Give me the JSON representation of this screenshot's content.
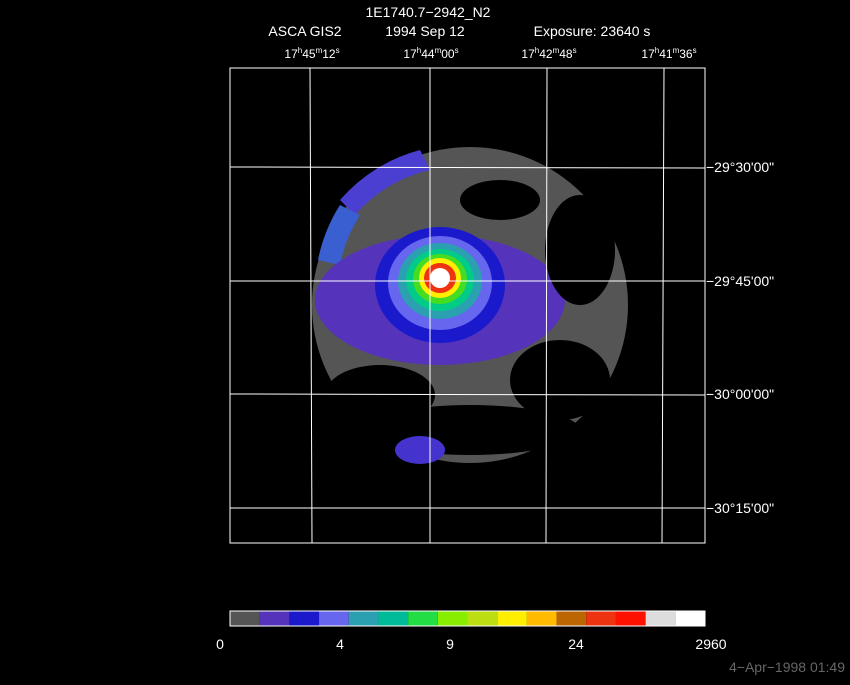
{
  "header": {
    "title": "1E1740.7−2942_N2",
    "instrument": "ASCA GIS2",
    "date": "1994 Sep 12",
    "exposure": "Exposure: 23640 s"
  },
  "ra_labels": [
    [
      "17",
      "h",
      "45",
      "m",
      "12",
      "s"
    ],
    [
      "17",
      "h",
      "44",
      "m",
      "00",
      "s"
    ],
    [
      "17",
      "h",
      "42",
      "m",
      "48",
      "s"
    ],
    [
      "17",
      "h",
      "41",
      "m",
      "36",
      "s"
    ]
  ],
  "dec_labels": [
    "−29°30'00\"",
    "−29°45'00\"",
    "−30°00'00\"",
    "−30°15'00\""
  ],
  "colorbar": {
    "labels": [
      "0",
      "4",
      "9",
      "24",
      "2960"
    ]
  },
  "footer": {
    "timestamp": "4−Apr−1998 01:49"
  }
}
